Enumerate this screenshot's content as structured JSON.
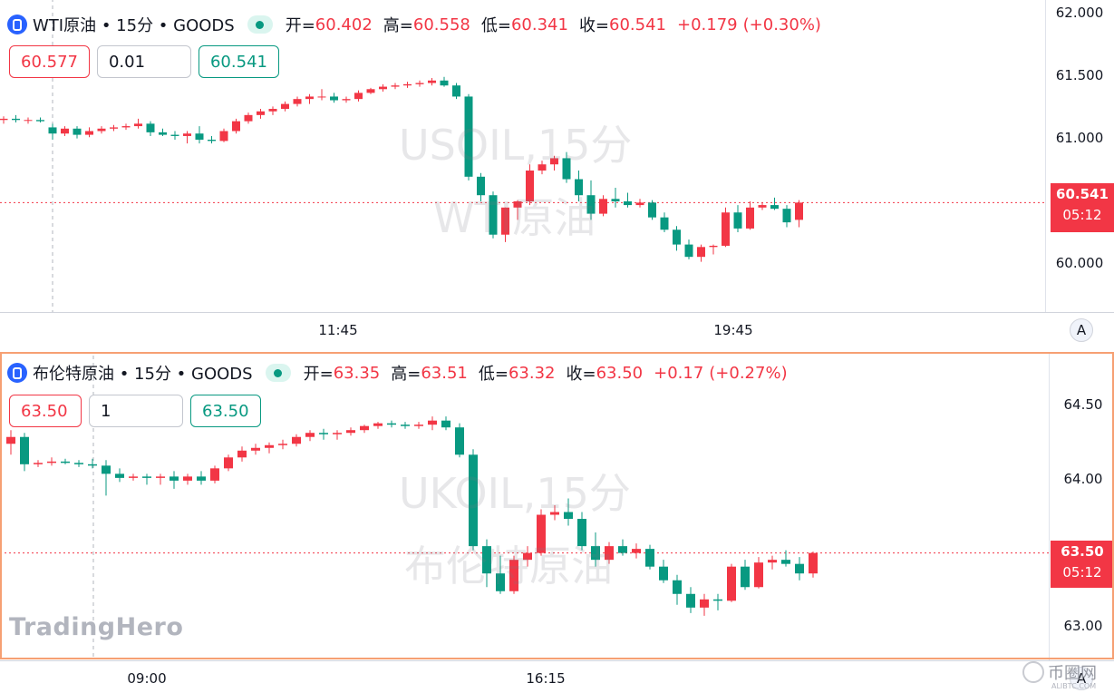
{
  "colors": {
    "up": "#f23645",
    "down": "#089981",
    "accent": "#2962ff",
    "highlight": "#f6a073"
  },
  "panes": [
    {
      "legend": {
        "icon": "symbol-lock-icon",
        "title": "WTI原油 • 15分 • GOODS",
        "open_label": "开=",
        "open": "60.402",
        "high_label": "高=",
        "high": "60.558",
        "low_label": "低=",
        "low": "60.341",
        "close_label": "收=",
        "close": "60.541",
        "change": "+0.179",
        "change_pct": "(+0.30%)"
      },
      "order": {
        "sell": "60.577",
        "qty": "0.01",
        "buy": "60.541"
      },
      "watermark": [
        "USOIL,15分",
        "WTI原油"
      ],
      "last_price": "60.541",
      "countdown": "05:12",
      "y_ticks": [
        "62.000",
        "61.500",
        "61.000",
        "60.000"
      ],
      "x_ticks": [
        "11:45",
        "19:45"
      ],
      "auto_label": "A"
    },
    {
      "legend": {
        "icon": "symbol-lock-icon",
        "title": "布伦特原油 • 15分 • GOODS",
        "open_label": "开=",
        "open": "63.35",
        "high_label": "高=",
        "high": "63.51",
        "low_label": "低=",
        "low": "63.32",
        "close_label": "收=",
        "close": "63.50",
        "change": "+0.17",
        "change_pct": "(+0.27%)"
      },
      "order": {
        "sell": "63.50",
        "qty": "1",
        "buy": "63.50"
      },
      "watermark": [
        "UKOIL,15分",
        "布伦特原油"
      ],
      "last_price": "63.50",
      "countdown": "05:12",
      "y_ticks": [
        "64.50",
        "64.00",
        "63.00"
      ],
      "x_ticks": [
        "09:00",
        "16:15"
      ],
      "auto_label": "A"
    }
  ],
  "brand": "TradingHero",
  "brand2": "币圈网",
  "brand2_sub": "ALIBTC.COM",
  "chart_data": [
    {
      "type": "candlestick",
      "title": "WTI原油 • 15分 • GOODS",
      "ylim": [
        59.66,
        62.08
      ],
      "series": [
        {
          "candles": [
            [
              61.21,
              61.24,
              61.18,
              61.22
            ],
            [
              61.22,
              61.25,
              61.19,
              61.21
            ],
            [
              61.21,
              61.23,
              61.18,
              61.21
            ],
            [
              61.21,
              61.23,
              61.19,
              61.2
            ],
            [
              61.15,
              61.18,
              61.05,
              61.1
            ],
            [
              61.1,
              61.16,
              61.08,
              61.14
            ],
            [
              61.14,
              61.16,
              61.06,
              61.09
            ],
            [
              61.09,
              61.15,
              61.07,
              61.12
            ],
            [
              61.12,
              61.16,
              61.1,
              61.14
            ],
            [
              61.14,
              61.17,
              61.12,
              61.15
            ],
            [
              61.15,
              61.18,
              61.13,
              61.16
            ],
            [
              61.16,
              61.22,
              61.14,
              61.18
            ],
            [
              61.18,
              61.2,
              61.08,
              61.11
            ],
            [
              61.11,
              61.14,
              61.08,
              61.09
            ],
            [
              61.09,
              61.12,
              61.05,
              61.08
            ],
            [
              61.08,
              61.12,
              61.02,
              61.1
            ],
            [
              61.1,
              61.16,
              61.02,
              61.05
            ],
            [
              61.05,
              61.08,
              61.02,
              61.04
            ],
            [
              61.04,
              61.14,
              61.03,
              61.12
            ],
            [
              61.12,
              61.22,
              61.1,
              61.2
            ],
            [
              61.2,
              61.27,
              61.18,
              61.25
            ],
            [
              61.25,
              61.3,
              61.22,
              61.28
            ],
            [
              61.28,
              61.32,
              61.25,
              61.3
            ],
            [
              61.3,
              61.36,
              61.28,
              61.34
            ],
            [
              61.34,
              61.4,
              61.32,
              61.38
            ],
            [
              61.38,
              61.42,
              61.34,
              61.4
            ],
            [
              61.4,
              61.46,
              61.37,
              61.4
            ],
            [
              61.4,
              61.43,
              61.35,
              61.37
            ],
            [
              61.37,
              61.4,
              61.35,
              61.38
            ],
            [
              61.38,
              61.45,
              61.36,
              61.43
            ],
            [
              61.43,
              61.47,
              61.42,
              61.46
            ],
            [
              61.46,
              61.5,
              61.44,
              61.48
            ],
            [
              61.48,
              61.51,
              61.46,
              61.49
            ],
            [
              61.49,
              61.52,
              61.47,
              61.5
            ],
            [
              61.5,
              61.53,
              61.48,
              61.51
            ],
            [
              61.51,
              61.55,
              61.49,
              61.53
            ],
            [
              61.53,
              61.56,
              61.48,
              61.49
            ],
            [
              61.49,
              61.51,
              61.38,
              61.4
            ],
            [
              61.4,
              61.42,
              60.72,
              60.75
            ],
            [
              60.75,
              60.78,
              60.55,
              60.6
            ],
            [
              60.6,
              60.63,
              60.25,
              60.28
            ],
            [
              60.28,
              60.5,
              60.22,
              60.5
            ],
            [
              60.5,
              60.56,
              60.4,
              60.55
            ],
            [
              60.55,
              60.85,
              60.52,
              60.8
            ],
            [
              60.8,
              60.88,
              60.77,
              60.85
            ],
            [
              60.85,
              60.92,
              60.8,
              60.9
            ],
            [
              60.9,
              60.95,
              60.7,
              60.73
            ],
            [
              60.73,
              60.8,
              60.55,
              60.6
            ],
            [
              60.6,
              60.72,
              60.4,
              60.45
            ],
            [
              60.45,
              60.6,
              60.43,
              60.57
            ],
            [
              60.57,
              60.66,
              60.5,
              60.55
            ],
            [
              60.55,
              60.62,
              60.5,
              60.52
            ],
            [
              60.52,
              60.57,
              60.5,
              60.54
            ],
            [
              60.54,
              60.56,
              60.4,
              60.42
            ],
            [
              60.42,
              60.46,
              60.3,
              60.32
            ],
            [
              60.32,
              60.35,
              60.15,
              60.2
            ],
            [
              60.2,
              60.24,
              60.08,
              60.1
            ],
            [
              60.1,
              60.2,
              60.06,
              60.18
            ],
            [
              60.18,
              60.2,
              60.12,
              60.19
            ],
            [
              60.19,
              60.5,
              60.18,
              60.46
            ],
            [
              60.46,
              60.52,
              60.3,
              60.33
            ],
            [
              60.33,
              60.55,
              60.32,
              60.5
            ],
            [
              60.5,
              60.54,
              60.48,
              60.52
            ],
            [
              60.52,
              60.58,
              60.48,
              60.49
            ],
            [
              60.49,
              60.52,
              60.34,
              60.38
            ],
            [
              60.4,
              60.56,
              60.34,
              60.54
            ]
          ]
        }
      ]
    },
    {
      "type": "candlestick",
      "title": "布伦特原油 • 15分 • GOODS",
      "ylim": [
        62.72,
        64.84
      ],
      "series": [
        {
          "candles": [
            [
              64.3,
              64.4,
              64.22,
              64.35
            ],
            [
              64.35,
              64.38,
              64.1,
              64.15
            ],
            [
              64.15,
              64.18,
              64.13,
              64.16
            ],
            [
              64.16,
              64.2,
              64.14,
              64.17
            ],
            [
              64.17,
              64.19,
              64.15,
              64.16
            ],
            [
              64.16,
              64.18,
              64.13,
              64.15
            ],
            [
              64.15,
              64.19,
              64.12,
              64.14
            ],
            [
              64.14,
              64.18,
              63.92,
              64.08
            ],
            [
              64.08,
              64.12,
              64.02,
              64.05
            ],
            [
              64.05,
              64.08,
              64.03,
              64.06
            ],
            [
              64.06,
              64.08,
              64.0,
              64.05
            ],
            [
              64.05,
              64.08,
              64.0,
              64.06
            ],
            [
              64.06,
              64.1,
              63.97,
              64.03
            ],
            [
              64.03,
              64.08,
              64.0,
              64.06
            ],
            [
              64.06,
              64.1,
              64.0,
              64.03
            ],
            [
              64.03,
              64.14,
              64.01,
              64.12
            ],
            [
              64.12,
              64.22,
              64.1,
              64.2
            ],
            [
              64.2,
              64.28,
              64.17,
              64.25
            ],
            [
              64.25,
              64.3,
              64.22,
              64.27
            ],
            [
              64.27,
              64.31,
              64.23,
              64.29
            ],
            [
              64.29,
              64.33,
              64.26,
              64.3
            ],
            [
              64.3,
              64.37,
              64.28,
              64.35
            ],
            [
              64.35,
              64.4,
              64.32,
              64.38
            ],
            [
              64.38,
              64.41,
              64.33,
              64.37
            ],
            [
              64.37,
              64.4,
              64.33,
              64.38
            ],
            [
              64.38,
              64.42,
              64.36,
              64.4
            ],
            [
              64.4,
              64.44,
              64.38,
              64.43
            ],
            [
              64.43,
              64.46,
              64.41,
              64.45
            ],
            [
              64.45,
              64.47,
              64.42,
              64.44
            ],
            [
              64.44,
              64.46,
              64.41,
              64.43
            ],
            [
              64.43,
              64.46,
              64.41,
              64.44
            ],
            [
              64.44,
              64.5,
              64.4,
              64.47
            ],
            [
              64.47,
              64.5,
              64.4,
              64.42
            ],
            [
              64.42,
              64.45,
              64.2,
              64.22
            ],
            [
              64.22,
              64.26,
              63.52,
              63.55
            ],
            [
              63.55,
              63.6,
              63.25,
              63.35
            ],
            [
              63.35,
              63.48,
              63.2,
              63.22
            ],
            [
              63.22,
              63.48,
              63.2,
              63.45
            ],
            [
              63.45,
              63.55,
              63.4,
              63.5
            ],
            [
              63.5,
              63.82,
              63.48,
              63.78
            ],
            [
              63.78,
              63.85,
              63.74,
              63.8
            ],
            [
              63.8,
              63.9,
              63.7,
              63.75
            ],
            [
              63.75,
              63.8,
              63.52,
              63.55
            ],
            [
              63.55,
              63.65,
              63.4,
              63.45
            ],
            [
              63.45,
              63.58,
              63.42,
              63.55
            ],
            [
              63.55,
              63.6,
              63.48,
              63.5
            ],
            [
              63.5,
              63.57,
              63.46,
              63.53
            ],
            [
              63.53,
              63.56,
              63.38,
              63.4
            ],
            [
              63.4,
              63.45,
              63.28,
              63.3
            ],
            [
              63.3,
              63.34,
              63.12,
              63.2
            ],
            [
              63.2,
              63.25,
              63.06,
              63.1
            ],
            [
              63.1,
              63.2,
              63.04,
              63.16
            ],
            [
              63.16,
              63.2,
              63.08,
              63.15
            ],
            [
              63.15,
              63.42,
              63.14,
              63.4
            ],
            [
              63.4,
              63.45,
              63.23,
              63.25
            ],
            [
              63.25,
              63.47,
              63.24,
              63.43
            ],
            [
              63.43,
              63.48,
              63.38,
              63.45
            ],
            [
              63.45,
              63.52,
              63.4,
              63.42
            ],
            [
              63.42,
              63.47,
              63.3,
              63.35
            ],
            [
              63.35,
              63.51,
              63.32,
              63.5
            ]
          ]
        }
      ]
    }
  ]
}
